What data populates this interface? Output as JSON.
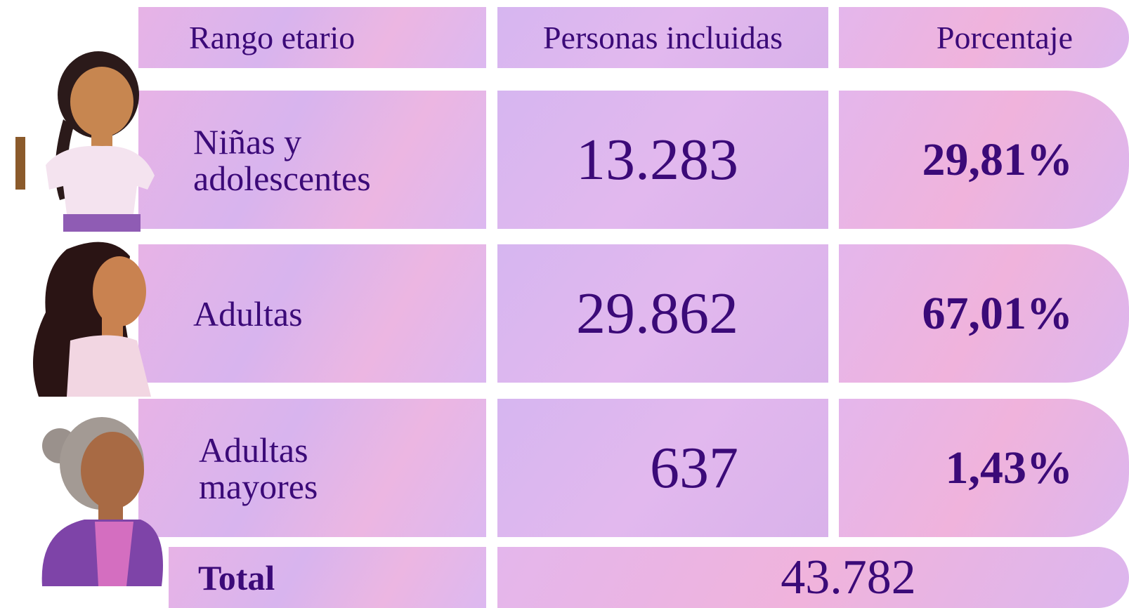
{
  "table": {
    "header": [
      "Rango etario",
      "Personas incluidas",
      "Porcentaje"
    ],
    "rows": [
      [
        "Niñas y adolescentes",
        "13.283",
        "29,81%"
      ],
      [
        "Adultas",
        "29.862",
        "67,01%"
      ],
      [
        "Adultas mayores",
        "637",
        "1,43%"
      ]
    ],
    "total": {
      "label": "Total",
      "value": "43.782"
    }
  }
}
